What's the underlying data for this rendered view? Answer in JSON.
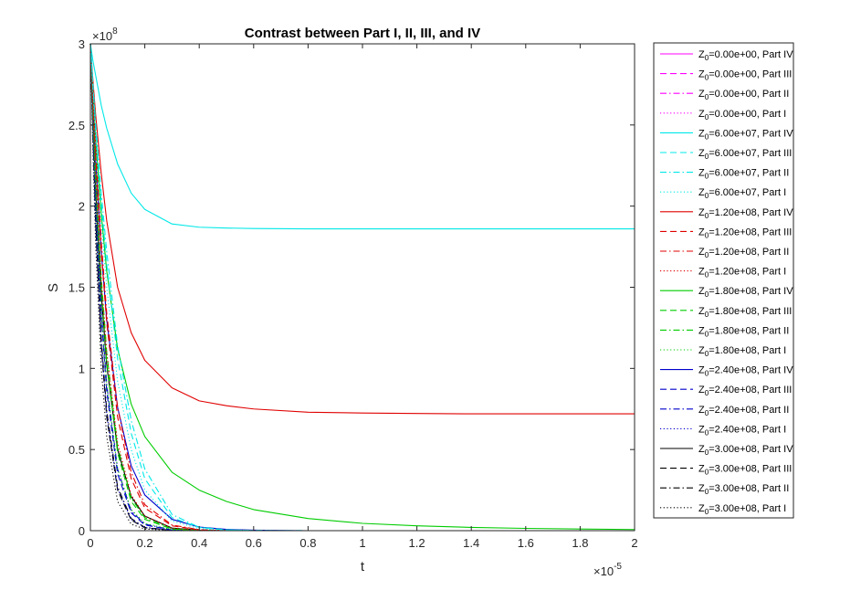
{
  "chart_data": {
    "type": "line",
    "title": "Contrast between Part I, II, III, and IV",
    "xlabel": "t",
    "ylabel": "S",
    "x_exponent_label": "×10",
    "x_exponent": "-5",
    "y_exponent_label": "×10",
    "y_exponent": "8",
    "xlim": [
      0,
      2
    ],
    "ylim": [
      0,
      3
    ],
    "x_ticks": [
      "0",
      "0.2",
      "0.4",
      "0.6",
      "0.8",
      "1",
      "1.2",
      "1.4",
      "1.6",
      "1.8",
      "2"
    ],
    "y_ticks": [
      "0",
      "0.5",
      "1",
      "1.5",
      "2",
      "2.5",
      "3"
    ],
    "grid": false,
    "legend_position": "outside-right",
    "x": [
      0,
      0.01,
      0.02,
      0.04,
      0.06,
      0.1,
      0.15,
      0.2,
      0.3,
      0.4,
      0.5,
      0.6,
      0.8,
      1.0,
      1.2,
      1.4,
      1.6,
      1.8,
      2.0
    ],
    "series": [
      {
        "name": "Z_0=0.00e+00, Part IV",
        "legend_main": "Z",
        "legend_sub": "0",
        "legend_rest": "=0.00e+00, Part IV",
        "color": "#ff00ff",
        "dash": "solid",
        "values": [
          3,
          3,
          3,
          3,
          3,
          3,
          3,
          3,
          3,
          3,
          3,
          3,
          3,
          3,
          3,
          3,
          3,
          3,
          3
        ]
      },
      {
        "name": "Z_0=0.00e+00, Part III",
        "legend_main": "Z",
        "legend_sub": "0",
        "legend_rest": "=0.00e+00, Part III",
        "color": "#ff00ff",
        "dash": "dashed",
        "values": [
          3,
          3,
          3,
          3,
          3,
          3,
          3,
          3,
          3,
          3,
          3,
          3,
          3,
          3,
          3,
          3,
          3,
          3,
          3
        ]
      },
      {
        "name": "Z_0=0.00e+00, Part II",
        "legend_main": "Z",
        "legend_sub": "0",
        "legend_rest": "=0.00e+00, Part II",
        "color": "#ff00ff",
        "dash": "dashdot",
        "values": [
          3,
          3,
          3,
          3,
          3,
          3,
          3,
          3,
          3,
          3,
          3,
          3,
          3,
          3,
          3,
          3,
          3,
          3,
          3
        ]
      },
      {
        "name": "Z_0=0.00e+00, Part I",
        "legend_main": "Z",
        "legend_sub": "0",
        "legend_rest": "=0.00e+00, Part I",
        "color": "#ff00ff",
        "dash": "dotted",
        "values": [
          3,
          3,
          3,
          3,
          3,
          3,
          3,
          3,
          3,
          3,
          3,
          3,
          3,
          3,
          3,
          3,
          3,
          3,
          3
        ]
      },
      {
        "name": "Z_0=6.00e+07, Part IV",
        "legend_main": "Z",
        "legend_sub": "0",
        "legend_rest": "=6.00e+07, Part IV",
        "color": "#00e8e8",
        "dash": "solid",
        "values": [
          3,
          2.89,
          2.8,
          2.62,
          2.48,
          2.26,
          2.08,
          1.98,
          1.89,
          1.87,
          1.865,
          1.862,
          1.86,
          1.86,
          1.86,
          1.86,
          1.86,
          1.86,
          1.86
        ]
      },
      {
        "name": "Z_0=6.00e+07, Part III",
        "legend_main": "Z",
        "legend_sub": "0",
        "legend_rest": "=6.00e+07, Part III",
        "color": "#00e8e8",
        "dash": "dashed",
        "values": [
          3,
          2.72,
          2.46,
          2.02,
          1.64,
          1.06,
          0.6,
          0.32,
          0.08,
          0.02,
          0.005,
          0.001,
          0,
          0,
          0,
          0,
          0,
          0,
          0
        ]
      },
      {
        "name": "Z_0=6.00e+07, Part II",
        "legend_main": "Z",
        "legend_sub": "0",
        "legend_rest": "=6.00e+07, Part II",
        "color": "#00e8e8",
        "dash": "dashdot",
        "values": [
          3,
          2.74,
          2.5,
          2.08,
          1.72,
          1.14,
          0.68,
          0.38,
          0.1,
          0.02,
          0.005,
          0.001,
          0,
          0,
          0,
          0,
          0,
          0,
          0
        ]
      },
      {
        "name": "Z_0=6.00e+07, Part I",
        "legend_main": "Z",
        "legend_sub": "0",
        "legend_rest": "=6.00e+07, Part I",
        "color": "#00e8e8",
        "dash": "dotted",
        "values": [
          3,
          2.68,
          2.38,
          1.9,
          1.5,
          0.92,
          0.5,
          0.25,
          0.06,
          0.012,
          0.003,
          0,
          0,
          0,
          0,
          0,
          0,
          0,
          0
        ]
      },
      {
        "name": "Z_0=1.20e+08, Part IV",
        "legend_main": "Z",
        "legend_sub": "0",
        "legend_rest": "=1.20e+08, Part IV",
        "color": "#e00000",
        "dash": "solid",
        "values": [
          3,
          2.76,
          2.55,
          2.2,
          1.91,
          1.5,
          1.22,
          1.05,
          0.88,
          0.8,
          0.77,
          0.75,
          0.73,
          0.725,
          0.722,
          0.72,
          0.72,
          0.72,
          0.72
        ]
      },
      {
        "name": "Z_0=1.20e+08, Part III",
        "legend_main": "Z",
        "legend_sub": "0",
        "legend_rest": "=1.20e+08, Part III",
        "color": "#e00000",
        "dash": "dashed",
        "values": [
          3,
          2.62,
          2.3,
          1.72,
          1.28,
          0.7,
          0.32,
          0.14,
          0.03,
          0.005,
          0.001,
          0,
          0,
          0,
          0,
          0,
          0,
          0,
          0
        ]
      },
      {
        "name": "Z_0=1.20e+08, Part II",
        "legend_main": "Z",
        "legend_sub": "0",
        "legend_rest": "=1.20e+08, Part II",
        "color": "#e00000",
        "dash": "dashdot",
        "values": [
          3,
          2.64,
          2.34,
          1.78,
          1.34,
          0.76,
          0.36,
          0.16,
          0.035,
          0.006,
          0.001,
          0,
          0,
          0,
          0,
          0,
          0,
          0,
          0
        ]
      },
      {
        "name": "Z_0=1.20e+08, Part I",
        "legend_main": "Z",
        "legend_sub": "0",
        "legend_rest": "=1.20e+08, Part I",
        "color": "#e00000",
        "dash": "dotted",
        "values": [
          3,
          2.55,
          2.16,
          1.54,
          1.1,
          0.54,
          0.22,
          0.09,
          0.015,
          0.002,
          0,
          0,
          0,
          0,
          0,
          0,
          0,
          0,
          0
        ]
      },
      {
        "name": "Z_0=1.80e+08, Part IV",
        "legend_main": "Z",
        "legend_sub": "0",
        "legend_rest": "=1.80e+08, Part IV",
        "color": "#00cc00",
        "dash": "solid",
        "values": [
          3,
          2.68,
          2.4,
          1.95,
          1.6,
          1.12,
          0.78,
          0.58,
          0.36,
          0.25,
          0.18,
          0.13,
          0.075,
          0.045,
          0.03,
          0.02,
          0.014,
          0.01,
          0.007
        ]
      },
      {
        "name": "Z_0=1.80e+08, Part III",
        "legend_main": "Z",
        "legend_sub": "0",
        "legend_rest": "=1.80e+08, Part III",
        "color": "#00cc00",
        "dash": "dashed",
        "values": [
          3,
          2.54,
          2.14,
          1.5,
          1.04,
          0.48,
          0.18,
          0.07,
          0.01,
          0.002,
          0,
          0,
          0,
          0,
          0,
          0,
          0,
          0,
          0
        ]
      },
      {
        "name": "Z_0=1.80e+08, Part II",
        "legend_main": "Z",
        "legend_sub": "0",
        "legend_rest": "=1.80e+08, Part II",
        "color": "#00cc00",
        "dash": "dashdot",
        "values": [
          3,
          2.56,
          2.18,
          1.56,
          1.1,
          0.52,
          0.2,
          0.08,
          0.012,
          0.002,
          0,
          0,
          0,
          0,
          0,
          0,
          0,
          0,
          0
        ]
      },
      {
        "name": "Z_0=1.80e+08, Part I",
        "legend_main": "Z",
        "legend_sub": "0",
        "legend_rest": "=1.80e+08, Part I",
        "color": "#00cc00",
        "dash": "dotted",
        "values": [
          3,
          2.46,
          2.0,
          1.34,
          0.9,
          0.38,
          0.13,
          0.045,
          0.006,
          0.001,
          0,
          0,
          0,
          0,
          0,
          0,
          0,
          0,
          0
        ]
      },
      {
        "name": "Z_0=2.40e+08, Part IV",
        "legend_main": "Z",
        "legend_sub": "0",
        "legend_rest": "=2.40e+08, Part IV",
        "color": "#0000cc",
        "dash": "solid",
        "values": [
          3,
          2.6,
          2.26,
          1.72,
          1.3,
          0.76,
          0.4,
          0.22,
          0.07,
          0.022,
          0.008,
          0.003,
          0,
          0,
          0,
          0,
          0,
          0,
          0
        ]
      },
      {
        "name": "Z_0=2.40e+08, Part III",
        "legend_main": "Z",
        "legend_sub": "0",
        "legend_rest": "=2.40e+08, Part III",
        "color": "#0000cc",
        "dash": "dashed",
        "values": [
          3,
          2.46,
          2.0,
          1.32,
          0.86,
          0.35,
          0.11,
          0.035,
          0.004,
          0,
          0,
          0,
          0,
          0,
          0,
          0,
          0,
          0,
          0
        ]
      },
      {
        "name": "Z_0=2.40e+08, Part II",
        "legend_main": "Z",
        "legend_sub": "0",
        "legend_rest": "=2.40e+08, Part II",
        "color": "#0000cc",
        "dash": "dashdot",
        "values": [
          3,
          2.48,
          2.04,
          1.36,
          0.9,
          0.38,
          0.12,
          0.04,
          0.005,
          0,
          0,
          0,
          0,
          0,
          0,
          0,
          0,
          0,
          0
        ]
      },
      {
        "name": "Z_0=2.40e+08, Part I",
        "legend_main": "Z",
        "legend_sub": "0",
        "legend_rest": "=2.40e+08, Part I",
        "color": "#0000cc",
        "dash": "dotted",
        "values": [
          3,
          2.38,
          1.86,
          1.16,
          0.72,
          0.26,
          0.07,
          0.02,
          0.002,
          0,
          0,
          0,
          0,
          0,
          0,
          0,
          0,
          0,
          0
        ]
      },
      {
        "name": "Z_0=3.00e+08, Part IV",
        "legend_main": "Z",
        "legend_sub": "0",
        "legend_rest": "=3.00e+08, Part IV",
        "color": "#000000",
        "dash": "solid",
        "values": [
          3,
          2.5,
          2.08,
          1.46,
          1.02,
          0.5,
          0.21,
          0.09,
          0.016,
          0.003,
          0,
          0,
          0,
          0,
          0,
          0,
          0,
          0,
          0
        ]
      },
      {
        "name": "Z_0=3.00e+08, Part III",
        "legend_main": "Z",
        "legend_sub": "0",
        "legend_rest": "=3.00e+08, Part III",
        "color": "#000000",
        "dash": "dashed",
        "values": [
          3,
          2.38,
          1.86,
          1.14,
          0.7,
          0.25,
          0.065,
          0.018,
          0.002,
          0,
          0,
          0,
          0,
          0,
          0,
          0,
          0,
          0,
          0
        ]
      },
      {
        "name": "Z_0=3.00e+08, Part II",
        "legend_main": "Z",
        "legend_sub": "0",
        "legend_rest": "=3.00e+08, Part II",
        "color": "#000000",
        "dash": "dashdot",
        "values": [
          3,
          2.4,
          1.9,
          1.18,
          0.74,
          0.27,
          0.075,
          0.02,
          0.002,
          0,
          0,
          0,
          0,
          0,
          0,
          0,
          0,
          0,
          0
        ]
      },
      {
        "name": "Z_0=3.00e+08, Part I",
        "legend_main": "Z",
        "legend_sub": "0",
        "legend_rest": "=3.00e+08, Part I",
        "color": "#000000",
        "dash": "dotted",
        "values": [
          3,
          2.3,
          1.74,
          1.0,
          0.58,
          0.18,
          0.04,
          0.01,
          0.001,
          0,
          0,
          0,
          0,
          0,
          0,
          0,
          0,
          0,
          0
        ]
      }
    ]
  }
}
